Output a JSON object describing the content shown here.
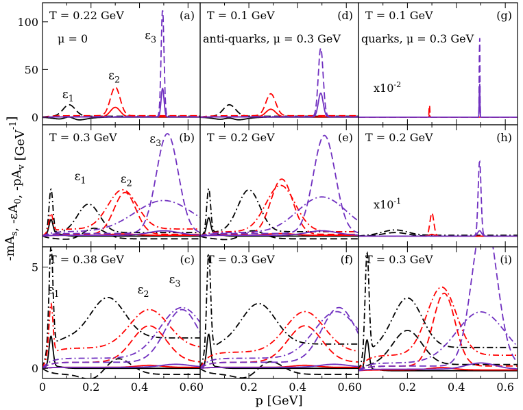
{
  "figure": {
    "ylabel": "-mA_s, -εA_0, -pA_v  [GeV^-1]",
    "xlabel": "p [GeV]"
  },
  "colors": {
    "black": "#000000",
    "red": "#ff0000",
    "purple": "#7030c0"
  },
  "chart_data": [
    {
      "id": "a",
      "type": "line",
      "panel_label": "(a)",
      "annotations": [
        "T = 0.22 GeV",
        "μ = 0"
      ],
      "eps_labels": [
        {
          "label": "ε1",
          "x": 0.11,
          "y": 20
        },
        {
          "label": "ε2",
          "x": 0.3,
          "y": 40
        },
        {
          "label": "ε3",
          "x": 0.45,
          "y": 82
        }
      ],
      "ylim": [
        -8,
        120
      ],
      "xlim": [
        0,
        0.65
      ],
      "yticks": [
        0,
        50,
        100
      ],
      "xticks": [
        0,
        0.2,
        0.4,
        0.6
      ],
      "series": [
        {
          "name": "ε1 dashed",
          "color": "black",
          "style": "dashed",
          "peak": 0.11,
          "height": 12,
          "width": 0.025,
          "baseline": 1,
          "rise": 0
        },
        {
          "name": "ε1 solid",
          "color": "black",
          "style": "solid",
          "peak": 0.11,
          "height": 4,
          "width": 0.02,
          "baseline": 0,
          "dip": -4
        },
        {
          "name": "ε2 dashed",
          "color": "red",
          "style": "dashed",
          "peak": 0.3,
          "height": 30,
          "width": 0.02,
          "baseline": 1.5
        },
        {
          "name": "ε2 solid",
          "color": "red",
          "style": "solid",
          "peak": 0.3,
          "height": 10,
          "width": 0.02,
          "baseline": 0.3
        },
        {
          "name": "ε3 dashed",
          "color": "purple",
          "style": "dashed",
          "peak": 0.495,
          "height": 112,
          "width": 0.006,
          "baseline": 0.5
        },
        {
          "name": "ε3 solid",
          "color": "purple",
          "style": "solid",
          "peak": 0.495,
          "height": 30,
          "width": 0.006,
          "baseline": 0.2
        }
      ]
    },
    {
      "id": "d",
      "type": "line",
      "panel_label": "(d)",
      "annotations": [
        "T = 0.1 GeV",
        "anti-quarks, μ = 0.3 GeV"
      ],
      "eps_labels": [],
      "ylim": [
        -8,
        120
      ],
      "xlim": [
        0,
        0.65
      ],
      "yticks": [
        0,
        50,
        100
      ],
      "xticks": [
        0,
        0.2,
        0.4,
        0.6
      ],
      "series": [
        {
          "name": "ε1 dashed",
          "color": "black",
          "style": "dashed",
          "peak": 0.12,
          "height": 12,
          "width": 0.025,
          "baseline": 1
        },
        {
          "name": "ε1 solid",
          "color": "black",
          "style": "solid",
          "peak": 0.12,
          "height": 3,
          "width": 0.02,
          "baseline": 0,
          "dip": -4
        },
        {
          "name": "ε2 dashed",
          "color": "red",
          "style": "dashed",
          "peak": 0.29,
          "height": 23,
          "width": 0.02,
          "baseline": 1.5
        },
        {
          "name": "ε2 solid",
          "color": "red",
          "style": "solid",
          "peak": 0.29,
          "height": 8,
          "width": 0.02,
          "baseline": 0.3
        },
        {
          "name": "ε3 dashed",
          "color": "purple",
          "style": "dashed",
          "peak": 0.495,
          "height": 72,
          "width": 0.01,
          "baseline": 0.5
        },
        {
          "name": "ε3 solid",
          "color": "purple",
          "style": "solid",
          "peak": 0.495,
          "height": 25,
          "width": 0.01,
          "baseline": 0.2
        }
      ]
    },
    {
      "id": "g",
      "type": "line",
      "panel_label": "(g)",
      "annotations": [
        "T = 0.1 GeV",
        "quarks, μ = 0.3 GeV",
        "x10-2"
      ],
      "eps_labels": [],
      "ylim": [
        -8,
        120
      ],
      "xlim": [
        0,
        0.65
      ],
      "yticks": [
        0,
        50,
        100
      ],
      "xticks": [
        0,
        0.2,
        0.4,
        0.6
      ],
      "series": [
        {
          "name": "ε1 dashed",
          "color": "black",
          "style": "dashed",
          "peak": 0.1,
          "height": 0,
          "width": 0.02,
          "baseline": 0
        },
        {
          "name": "ε2 dashed",
          "color": "red",
          "style": "dashed",
          "peak": 0.29,
          "height": 14,
          "width": 0.0015,
          "baseline": 0
        },
        {
          "name": "ε2 solid",
          "color": "red",
          "style": "solid",
          "peak": 0.29,
          "height": 2,
          "width": 0.0015,
          "baseline": 0
        },
        {
          "name": "ε3 dashed",
          "color": "purple",
          "style": "dashed",
          "peak": 0.495,
          "height": 95,
          "width": 0.0012,
          "baseline": 0
        },
        {
          "name": "ε3 solid",
          "color": "purple",
          "style": "solid",
          "peak": 0.495,
          "height": 40,
          "width": 0.0012,
          "baseline": 0
        }
      ]
    },
    {
      "id": "b",
      "type": "line",
      "panel_label": "(b)",
      "annotations": [
        "T = 0.3 GeV"
      ],
      "eps_labels": [
        {
          "label": "ε1",
          "x": 0.16,
          "y": 6.3
        },
        {
          "label": "ε2",
          "x": 0.35,
          "y": 6.0
        },
        {
          "label": "ε3",
          "x": 0.47,
          "y": 10.5
        }
      ],
      "ylim": [
        -1.2,
        12.5
      ],
      "xlim": [
        0,
        0.65
      ],
      "yticks": [],
      "xticks": [
        0,
        0.2,
        0.4,
        0.6
      ],
      "series": [
        {
          "name": "ε1 dashdot",
          "color": "black",
          "style": "dashdot",
          "peak": 0.19,
          "height": 3.2,
          "width": 0.045,
          "spike": 5,
          "baseline": 0.4
        },
        {
          "name": "ε1 dashed",
          "color": "black",
          "style": "dashed",
          "peak": 0.2,
          "height": 1.8,
          "width": 0.05,
          "baseline": -0.3,
          "dip": -0.8
        },
        {
          "name": "ε1 solid",
          "color": "black",
          "style": "solid",
          "peak": 0.05,
          "height": 0.3,
          "width": 0.03,
          "baseline": 0,
          "spike": 1.6
        },
        {
          "name": "ε2 dashed",
          "color": "red",
          "style": "dashed",
          "peak": 0.34,
          "height": 4.7,
          "width": 0.045,
          "baseline": 0.2
        },
        {
          "name": "ε2 dashdot",
          "color": "red",
          "style": "dashdot",
          "peak": 0.33,
          "height": 4.4,
          "width": 0.06,
          "baseline": 0.8,
          "spike": 2
        },
        {
          "name": "ε2 solid",
          "color": "red",
          "style": "solid",
          "peak": 0.33,
          "height": 0.15,
          "width": 0.05,
          "baseline": 0.1
        },
        {
          "name": "ε3 dashed",
          "color": "purple",
          "style": "dashed",
          "peak": 0.515,
          "height": 11.2,
          "width": 0.045,
          "baseline": 0.3
        },
        {
          "name": "ε3 dashdot",
          "color": "purple",
          "style": "dashdot",
          "peak": 0.5,
          "height": 3.5,
          "width": 0.12,
          "baseline": 0.5
        },
        {
          "name": "ε3 solid",
          "color": "purple",
          "style": "solid",
          "peak": 0.5,
          "height": 0.5,
          "width": 0.06,
          "baseline": 0.1
        }
      ]
    },
    {
      "id": "e",
      "type": "line",
      "panel_label": "(e)",
      "annotations": [
        "T = 0.2 GeV"
      ],
      "eps_labels": [],
      "ylim": [
        -1.2,
        12.5
      ],
      "xlim": [
        0,
        0.65
      ],
      "yticks": [],
      "xticks": [
        0,
        0.2,
        0.4,
        0.6
      ],
      "series": [
        {
          "name": "ε1 dashdot",
          "color": "black",
          "style": "dashdot",
          "peak": 0.2,
          "height": 4.7,
          "width": 0.045,
          "spike": 5,
          "baseline": 0.5
        },
        {
          "name": "ε1 dashed",
          "color": "black",
          "style": "dashed",
          "peak": 0.2,
          "height": 1.5,
          "width": 0.05,
          "baseline": -0.3,
          "dip": -0.8
        },
        {
          "name": "ε1 solid",
          "color": "black",
          "style": "solid",
          "peak": 0.05,
          "height": 0.3,
          "width": 0.03,
          "baseline": 0,
          "spike": 1.8
        },
        {
          "name": "ε2 dashed",
          "color": "red",
          "style": "dashed",
          "peak": 0.335,
          "height": 6.2,
          "width": 0.045,
          "baseline": 0.2
        },
        {
          "name": "ε2 dashdot",
          "color": "red",
          "style": "dashdot",
          "peak": 0.33,
          "height": 5.2,
          "width": 0.06,
          "baseline": 0.5
        },
        {
          "name": "ε2 solid",
          "color": "red",
          "style": "solid",
          "peak": 0.33,
          "height": 0.2,
          "width": 0.05,
          "baseline": 0.1
        },
        {
          "name": "ε3 dashed",
          "color": "purple",
          "style": "dashed",
          "peak": 0.51,
          "height": 11.0,
          "width": 0.045,
          "baseline": 0.3
        },
        {
          "name": "ε3 dashdot",
          "color": "purple",
          "style": "dashdot",
          "peak": 0.5,
          "height": 4.0,
          "width": 0.1,
          "baseline": 0.4
        },
        {
          "name": "ε3 solid",
          "color": "purple",
          "style": "solid",
          "peak": 0.5,
          "height": 0.5,
          "width": 0.06,
          "baseline": 0.1
        }
      ]
    },
    {
      "id": "h",
      "type": "line",
      "panel_label": "(h)",
      "annotations": [
        "T = 0.2 GeV",
        "x10-1"
      ],
      "eps_labels": [],
      "ylim": [
        -1.2,
        12.5
      ],
      "xlim": [
        0,
        0.65
      ],
      "yticks": [],
      "xticks": [
        0,
        0.2,
        0.4,
        0.6
      ],
      "series": [
        {
          "name": "ε1 dashdot",
          "color": "black",
          "style": "dashdot",
          "peak": 0.15,
          "height": 0.6,
          "width": 0.05,
          "baseline": 0.1
        },
        {
          "name": "ε1 dashed",
          "color": "black",
          "style": "dashed",
          "peak": 0.15,
          "height": 0.4,
          "width": 0.05,
          "baseline": 0
        },
        {
          "name": "ε2 dashed",
          "color": "red",
          "style": "dashed",
          "peak": 0.3,
          "height": 2.6,
          "width": 0.008,
          "baseline": 0
        },
        {
          "name": "ε2 solid",
          "color": "red",
          "style": "solid",
          "peak": 0.3,
          "height": 0.2,
          "width": 0.01,
          "baseline": 0
        },
        {
          "name": "ε3 dashed",
          "color": "purple",
          "style": "dashed",
          "peak": 0.495,
          "height": 8.4,
          "width": 0.006,
          "baseline": 0
        },
        {
          "name": "ε3 solid",
          "color": "purple",
          "style": "solid",
          "peak": 0.495,
          "height": 0.6,
          "width": 0.008,
          "baseline": 0
        }
      ]
    },
    {
      "id": "c",
      "type": "line",
      "panel_label": "(c)",
      "annotations": [
        "T = 0.38 GeV"
      ],
      "eps_labels": [
        {
          "label": "ε1",
          "x": 0.05,
          "y": 3.7
        },
        {
          "label": "ε2",
          "x": 0.42,
          "y": 3.7
        },
        {
          "label": "ε3",
          "x": 0.55,
          "y": 4.2
        }
      ],
      "ylim": [
        -0.5,
        6.0
      ],
      "xlim": [
        0,
        0.65
      ],
      "yticks": [
        0,
        5
      ],
      "xticks": [
        0,
        0.2,
        0.4,
        0.6
      ],
      "series": [
        {
          "name": "ε1 dashdot",
          "color": "black",
          "style": "dashdot",
          "peak": 0.27,
          "height": 2.0,
          "width": 0.07,
          "spike": 5,
          "baseline": 1.5
        },
        {
          "name": "ε1 dashed",
          "color": "black",
          "style": "dashed",
          "peak": 0.3,
          "height": 0.9,
          "width": 0.06,
          "baseline": -0.3,
          "dip": -0.5
        },
        {
          "name": "ε1 solid",
          "color": "black",
          "style": "solid",
          "peak": 0.05,
          "height": 0.1,
          "width": 0.03,
          "baseline": 0,
          "spike": 1.5
        },
        {
          "name": "ε2 dashdot",
          "color": "red",
          "style": "dashdot",
          "peak": 0.44,
          "height": 1.9,
          "width": 0.08,
          "baseline": 1.0,
          "spike": 2.5
        },
        {
          "name": "ε2 dashed",
          "color": "red",
          "style": "dashed",
          "peak": 0.44,
          "height": 1.8,
          "width": 0.07,
          "baseline": 0.3
        },
        {
          "name": "ε2 solid",
          "color": "red",
          "style": "solid",
          "peak": 0.44,
          "height": 0.1,
          "width": 0.05,
          "baseline": 0.05
        },
        {
          "name": "ε3 dashed",
          "color": "purple",
          "style": "dashed",
          "peak": 0.575,
          "height": 2.6,
          "width": 0.07,
          "baseline": 0.3
        },
        {
          "name": "ε3 dashdot",
          "color": "purple",
          "style": "dashdot",
          "peak": 0.575,
          "height": 2.5,
          "width": 0.09,
          "baseline": 0.5
        },
        {
          "name": "ε3 solid",
          "color": "purple",
          "style": "solid",
          "peak": 0.55,
          "height": 0.15,
          "width": 0.06,
          "baseline": 0.05
        }
      ]
    },
    {
      "id": "f",
      "type": "line",
      "panel_label": "(f)",
      "annotations": [
        "T = 0.3 GeV"
      ],
      "eps_labels": [],
      "ylim": [
        -0.5,
        6.0
      ],
      "xlim": [
        0,
        0.65
      ],
      "yticks": [],
      "xticks": [
        0,
        0.2,
        0.4,
        0.6
      ],
      "series": [
        {
          "name": "ε1 dashdot",
          "color": "black",
          "style": "dashdot",
          "peak": 0.24,
          "height": 2.0,
          "width": 0.07,
          "spike": 4.8,
          "baseline": 1.2
        },
        {
          "name": "ε1 dashed",
          "color": "black",
          "style": "dashed",
          "peak": 0.27,
          "height": 0.8,
          "width": 0.06,
          "baseline": -0.3,
          "dip": -0.5
        },
        {
          "name": "ε1 solid",
          "color": "black",
          "style": "solid",
          "peak": 0.05,
          "height": 0.1,
          "width": 0.03,
          "baseline": 0,
          "spike": 1.6
        },
        {
          "name": "ε2 dashdot",
          "color": "red",
          "style": "dashdot",
          "peak": 0.43,
          "height": 2.0,
          "width": 0.08,
          "baseline": 0.8
        },
        {
          "name": "ε2 dashed",
          "color": "red",
          "style": "dashed",
          "peak": 0.43,
          "height": 1.8,
          "width": 0.07,
          "baseline": 0.3
        },
        {
          "name": "ε2 solid",
          "color": "red",
          "style": "solid",
          "peak": 0.43,
          "height": 0.1,
          "width": 0.05,
          "baseline": 0.05
        },
        {
          "name": "ε3 dashed",
          "color": "purple",
          "style": "dashed",
          "peak": 0.57,
          "height": 2.7,
          "width": 0.07,
          "baseline": 0.3
        },
        {
          "name": "ε3 dashdot",
          "color": "purple",
          "style": "dashdot",
          "peak": 0.56,
          "height": 2.3,
          "width": 0.09,
          "baseline": 0.5
        },
        {
          "name": "ε3 solid",
          "color": "purple",
          "style": "solid",
          "peak": 0.55,
          "height": 0.15,
          "width": 0.06,
          "baseline": 0.05
        }
      ]
    },
    {
      "id": "i",
      "type": "line",
      "panel_label": "(i)",
      "annotations": [
        "T = 0.3 GeV"
      ],
      "eps_labels": [],
      "ylim": [
        -0.5,
        8.0
      ],
      "xlim": [
        0,
        0.65
      ],
      "yticks": [],
      "xticks": [
        0,
        0.2,
        0.4,
        0.6
      ],
      "series": [
        {
          "name": "ε1 dashdot",
          "color": "black",
          "style": "dashdot",
          "peak": 0.2,
          "height": 3.2,
          "width": 0.06,
          "spike": 6.5,
          "baseline": 1.5
        },
        {
          "name": "ε1 dashed",
          "color": "black",
          "style": "dashed",
          "peak": 0.2,
          "height": 2.2,
          "width": 0.06,
          "baseline": 0.4
        },
        {
          "name": "ε1 solid",
          "color": "black",
          "style": "solid",
          "peak": 0.05,
          "height": 0.1,
          "width": 0.03,
          "baseline": 0,
          "spike": 1.9
        },
        {
          "name": "ε2 dashed",
          "color": "red",
          "style": "dashed",
          "peak": 0.35,
          "height": 4.7,
          "width": 0.045,
          "baseline": 0.3
        },
        {
          "name": "ε2 dashdot",
          "color": "red",
          "style": "dashdot",
          "peak": 0.34,
          "height": 4.4,
          "width": 0.06,
          "baseline": 1.0
        },
        {
          "name": "ε2 solid",
          "color": "red",
          "style": "solid",
          "peak": 0.34,
          "height": 0.15,
          "width": 0.05,
          "baseline": 0.05
        },
        {
          "name": "ε3 dashed",
          "color": "purple",
          "style": "dashed",
          "peak": 0.515,
          "height": 9.8,
          "width": 0.05,
          "baseline": 0.3
        },
        {
          "name": "ε3 dashdot",
          "color": "purple",
          "style": "dashdot",
          "peak": 0.5,
          "height": 3.3,
          "width": 0.1,
          "baseline": 0.5
        },
        {
          "name": "ε3 solid",
          "color": "purple",
          "style": "solid",
          "peak": 0.5,
          "height": 0.4,
          "width": 0.06,
          "baseline": 0.1
        }
      ]
    }
  ]
}
